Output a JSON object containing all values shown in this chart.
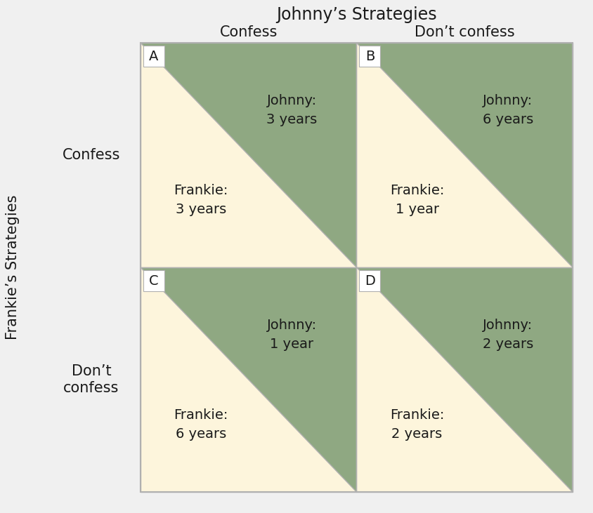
{
  "title": "Johnny’s Strategies",
  "col_labels": [
    "Confess",
    "Don’t confess"
  ],
  "row_label_title": "Frankie’s Strategies",
  "row_labels": [
    "Confess",
    "Don’t\nconfess"
  ],
  "cell_letters": [
    "A",
    "B",
    "C",
    "D"
  ],
  "johnny_values": [
    "Johnny:\n3 years",
    "Johnny:\n6 years",
    "Johnny:\n1 year",
    "Johnny:\n2 years"
  ],
  "frankie_values": [
    "Frankie:\n3 years",
    "Frankie:\n1 year",
    "Frankie:\n6 years",
    "Frankie:\n2 years"
  ],
  "bg_color": "#f0f0f0",
  "upper_tri_color": "#8fa882",
  "lower_tri_color": "#fdf5dc",
  "cell_border_color": "#b0b0b0",
  "text_color": "#1a1a1a",
  "title_fontsize": 17,
  "col_label_fontsize": 15,
  "row_label_fontsize": 15,
  "cell_fontsize": 14,
  "letter_fontsize": 14
}
